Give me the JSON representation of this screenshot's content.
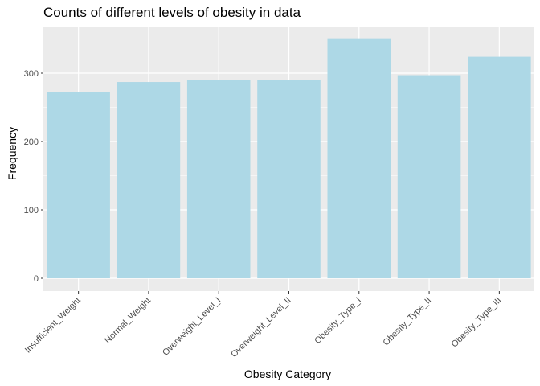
{
  "chart_data": {
    "type": "bar",
    "title": "Counts of different levels of obesity in data",
    "xlabel": "Obesity Category",
    "ylabel": "Frequency",
    "categories": [
      "Insufficient_Weight",
      "Normal_Weight",
      "Overweight_Level_I",
      "Overweight_Level_II",
      "Obesity_Type_I",
      "Obesity_Type_II",
      "Obesity_Type_III"
    ],
    "values": [
      272,
      287,
      290,
      290,
      351,
      297,
      324
    ],
    "ylim": [
      0,
      370
    ],
    "yticks": [
      0,
      100,
      200,
      300
    ],
    "grid": true,
    "bar_color": "#add8e6",
    "panel_color": "#ebebeb",
    "grid_color": "#ffffff"
  }
}
